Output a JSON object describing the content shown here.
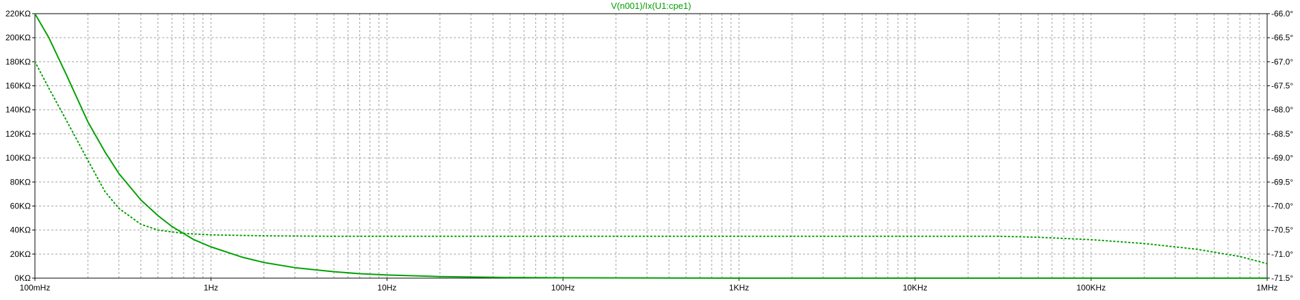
{
  "chart_data": {
    "type": "line",
    "title": "V(n001)/Ix(U1:cpe1)",
    "x_scale": "log",
    "x_range": [
      0.1,
      1000000
    ],
    "x_ticks": [
      {
        "value": 0.1,
        "label": "100mHz"
      },
      {
        "value": 1,
        "label": "1Hz"
      },
      {
        "value": 10,
        "label": "10Hz"
      },
      {
        "value": 100,
        "label": "100Hz"
      },
      {
        "value": 1000,
        "label": "1KHz"
      },
      {
        "value": 10000,
        "label": "10KHz"
      },
      {
        "value": 100000,
        "label": "100KHz"
      },
      {
        "value": 1000000,
        "label": "1MHz"
      }
    ],
    "y_left": {
      "range": [
        0,
        220000
      ],
      "ticks": [
        {
          "value": 0,
          "label": "0KΩ"
        },
        {
          "value": 20000,
          "label": "20KΩ"
        },
        {
          "value": 40000,
          "label": "40KΩ"
        },
        {
          "value": 60000,
          "label": "60KΩ"
        },
        {
          "value": 80000,
          "label": "80KΩ"
        },
        {
          "value": 100000,
          "label": "100KΩ"
        },
        {
          "value": 120000,
          "label": "120KΩ"
        },
        {
          "value": 140000,
          "label": "140KΩ"
        },
        {
          "value": 160000,
          "label": "160KΩ"
        },
        {
          "value": 180000,
          "label": "180KΩ"
        },
        {
          "value": 200000,
          "label": "200KΩ"
        },
        {
          "value": 220000,
          "label": "220KΩ"
        }
      ]
    },
    "y_right": {
      "range": [
        -71.5,
        -66.0
      ],
      "ticks": [
        {
          "value": -66.0,
          "label": "-66.0°"
        },
        {
          "value": -66.5,
          "label": "-66.5°"
        },
        {
          "value": -67.0,
          "label": "-67.0°"
        },
        {
          "value": -67.5,
          "label": "-67.5°"
        },
        {
          "value": -68.0,
          "label": "-68.0°"
        },
        {
          "value": -68.5,
          "label": "-68.5°"
        },
        {
          "value": -69.0,
          "label": "-69.0°"
        },
        {
          "value": -69.5,
          "label": "-69.5°"
        },
        {
          "value": -70.0,
          "label": "-70.0°"
        },
        {
          "value": -70.5,
          "label": "-70.5°"
        },
        {
          "value": -71.0,
          "label": "-71.0°"
        },
        {
          "value": -71.5,
          "label": "-71.5°"
        }
      ]
    },
    "grid": true,
    "series": [
      {
        "style": "solid",
        "axis": "left",
        "color": "#00a000",
        "x": [
          0.1,
          0.12,
          0.15,
          0.2,
          0.25,
          0.3,
          0.4,
          0.5,
          0.6,
          0.8,
          1,
          1.5,
          2,
          3,
          5,
          7,
          10,
          20,
          50,
          100,
          500,
          1000,
          10000,
          100000,
          1000000
        ],
        "y": [
          220000,
          200000,
          170000,
          130000,
          105000,
          87000,
          65000,
          52000,
          43000,
          32000,
          26000,
          17500,
          13000,
          8700,
          5300,
          3700,
          2600,
          1300,
          530,
          260,
          60,
          30,
          3,
          0.3,
          0.03
        ]
      },
      {
        "style": "dotted",
        "axis": "right",
        "color": "#00a000",
        "x": [
          0.1,
          0.12,
          0.15,
          0.2,
          0.25,
          0.3,
          0.4,
          0.5,
          0.7,
          1,
          2,
          5,
          10,
          100,
          1000,
          10000,
          30000,
          50000,
          100000,
          200000,
          400000,
          700000,
          1000000
        ],
        "y": [
          -67.0,
          -67.55,
          -68.2,
          -69.05,
          -69.7,
          -70.05,
          -70.38,
          -70.5,
          -70.57,
          -70.6,
          -70.62,
          -70.63,
          -70.63,
          -70.63,
          -70.63,
          -70.63,
          -70.63,
          -70.65,
          -70.7,
          -70.78,
          -70.9,
          -71.05,
          -71.2
        ]
      }
    ]
  }
}
